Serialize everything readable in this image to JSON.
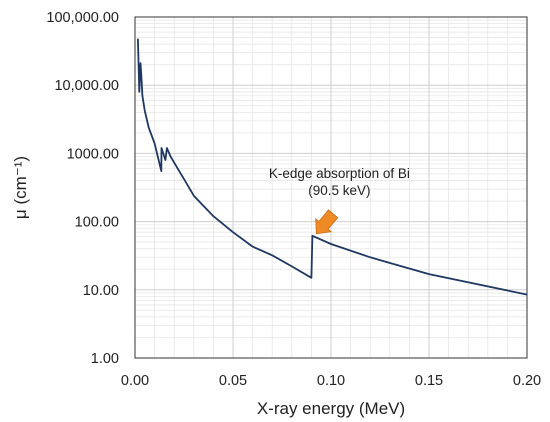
{
  "chart_data": {
    "type": "line",
    "title": "",
    "xlabel": "X-ray energy (MeV)",
    "ylabel": "μ (cm⁻¹)",
    "xlim": [
      0,
      0.2
    ],
    "ylim": [
      1,
      100000
    ],
    "yscale": "log",
    "grid": true,
    "x_ticks": [
      0.0,
      0.05,
      0.1,
      0.15,
      0.2
    ],
    "x_tick_labels": [
      "0.00",
      "0.05",
      "0.10",
      "0.15",
      "0.20"
    ],
    "y_ticks": [
      1,
      10,
      100,
      1000,
      10000,
      100000
    ],
    "y_tick_labels": [
      "1.00",
      "10.00",
      "100.00",
      "1000.00",
      "10,000.00",
      "100,000.00"
    ],
    "line_color": "#1f3864",
    "series": [
      {
        "x": [
          0.0015,
          0.0022,
          0.0028,
          0.0032,
          0.0038,
          0.005,
          0.007,
          0.01,
          0.0134,
          0.0135,
          0.0155,
          0.0163,
          0.018,
          0.02,
          0.025,
          0.03,
          0.04,
          0.05,
          0.06,
          0.07,
          0.08,
          0.09,
          0.0905,
          0.1,
          0.12,
          0.15,
          0.2
        ],
        "y": [
          48000,
          8000,
          21000,
          14000,
          7000,
          4200,
          2400,
          1400,
          550,
          1200,
          800,
          1200,
          920,
          730,
          420,
          240,
          120,
          70,
          43,
          32,
          22,
          15,
          62,
          47,
          30,
          17,
          8.5
        ]
      }
    ],
    "annotations": [
      {
        "text_line1": "K-edge absorption of Bi",
        "text_line2": "(90.5 keV)",
        "arrow_color": "#f08a24",
        "arrow_target": [
          0.091,
          62
        ]
      }
    ]
  }
}
